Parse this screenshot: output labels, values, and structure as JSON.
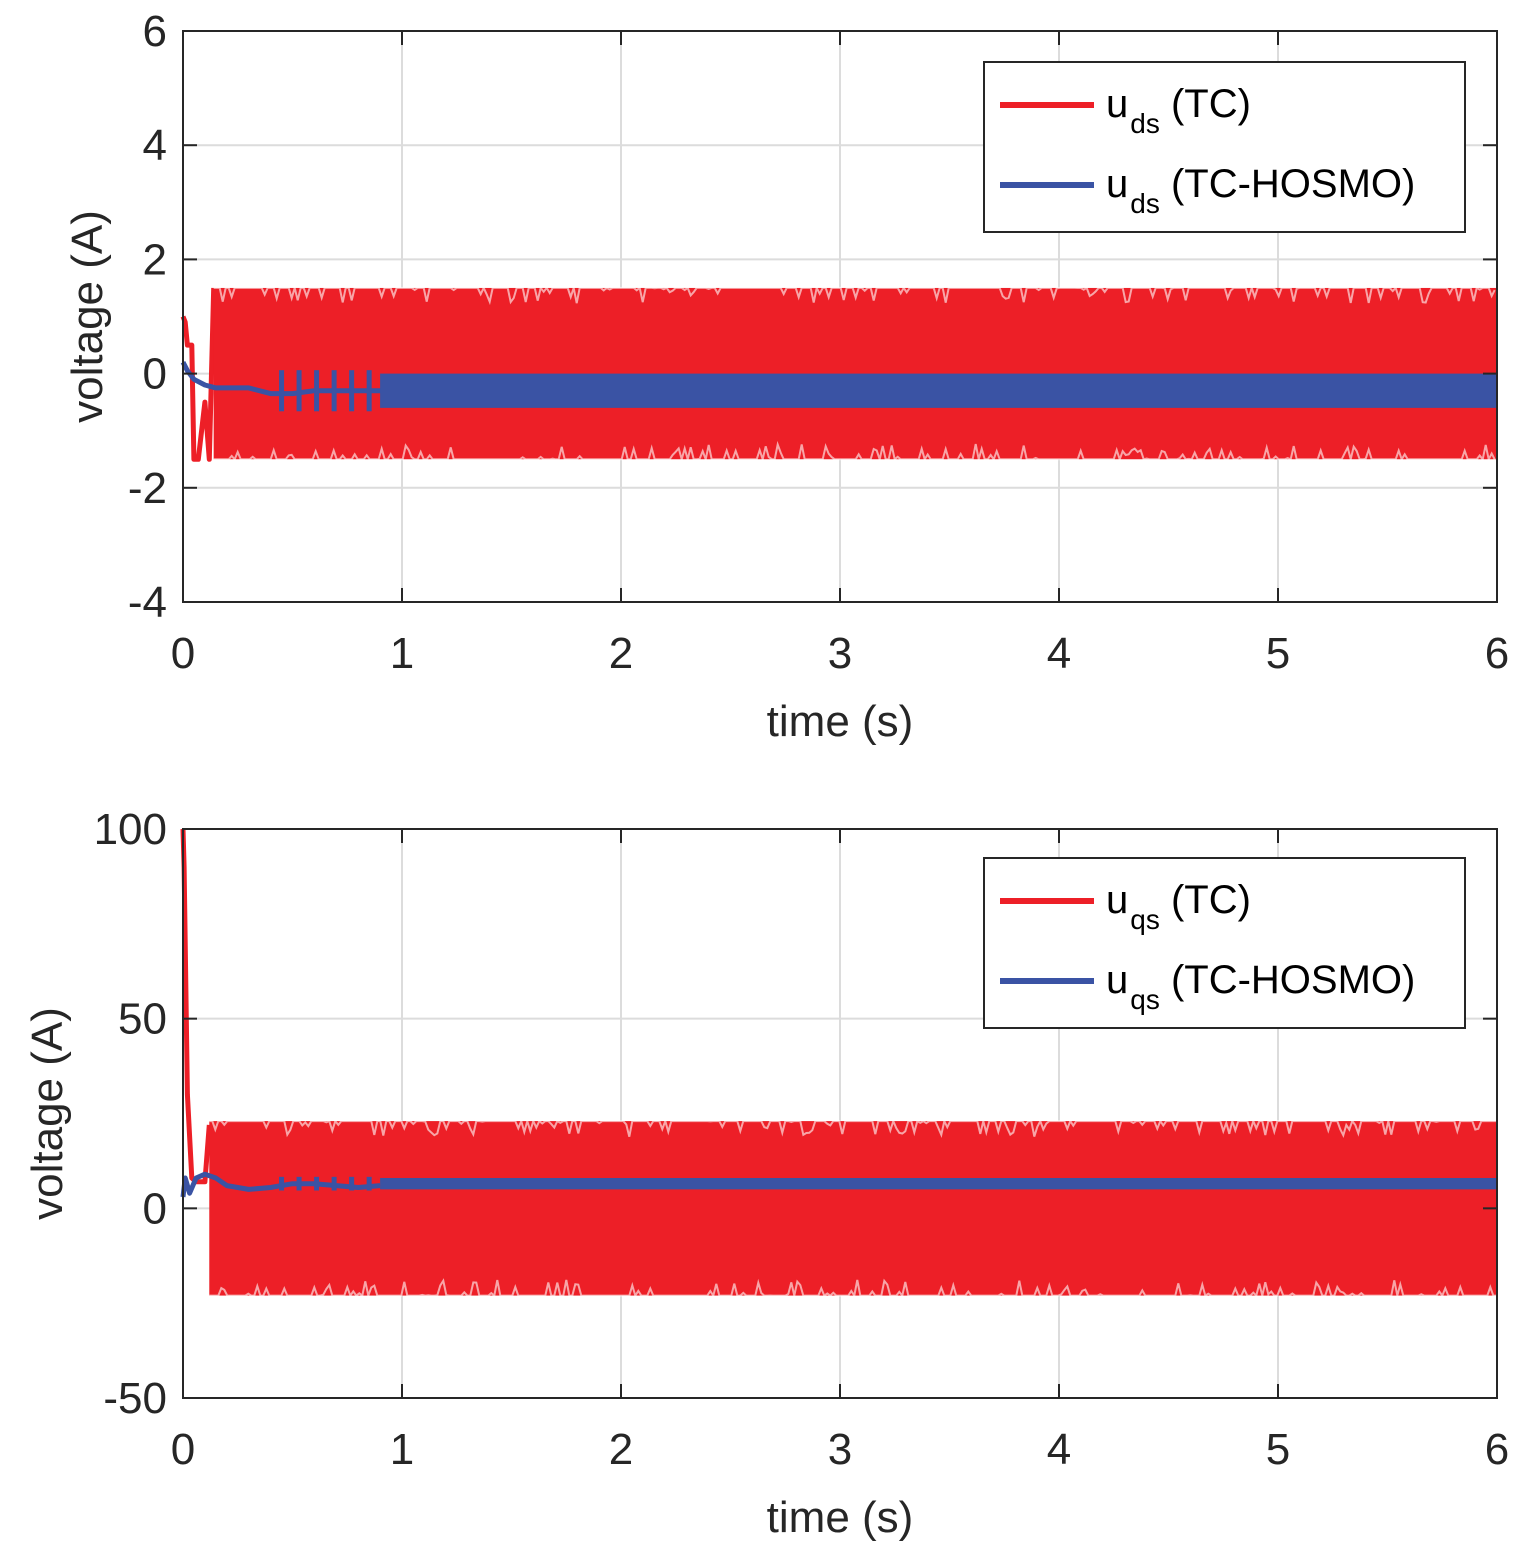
{
  "chart_data": [
    {
      "type": "line",
      "title": "",
      "xlabel": "time (s)",
      "ylabel": "voltage (A)",
      "xlim": [
        0,
        6
      ],
      "ylim": [
        -4,
        6
      ],
      "xticks": [
        "0",
        "1",
        "2",
        "3",
        "4",
        "5",
        "6"
      ],
      "yticks": [
        "6",
        "4",
        "2",
        "0",
        "-2",
        "-4"
      ],
      "grid": true,
      "legend_position": "top-right",
      "series": [
        {
          "name": "u_ds (TC)",
          "legend_main": "u",
          "legend_sub": "ds",
          "legend_suffix": " (TC)",
          "color": "#ed1f27",
          "description": "chattering band between -1.5 and 1.5 after t=0.14 s",
          "initial": {
            "x": [
              0,
              0.01,
              0.02,
              0.04,
              0.05,
              0.07,
              0.1,
              0.12,
              0.14
            ],
            "y": [
              1.0,
              0.9,
              0.5,
              0.5,
              -1.5,
              -1.5,
              -0.5,
              -1.5,
              1.5
            ]
          },
          "band": {
            "x_start": 0.14,
            "x_end": 6,
            "min": -1.5,
            "max": 1.5
          }
        },
        {
          "name": "u_ds (TC-HOSMO)",
          "legend_main": "u",
          "legend_sub": "ds",
          "legend_suffix": " (TC-HOSMO)",
          "color": "#3a53a4",
          "description": "settles near -0.3 with small chattering band",
          "x": [
            0,
            0.02,
            0.05,
            0.1,
            0.15,
            0.2,
            0.3,
            0.4,
            0.5,
            0.6,
            0.7,
            0.8,
            0.9,
            1.0
          ],
          "y": [
            0.2,
            0.05,
            -0.1,
            -0.2,
            -0.25,
            -0.25,
            -0.25,
            -0.35,
            -0.35,
            -0.3,
            -0.3,
            -0.3,
            -0.3,
            -0.3
          ],
          "band": {
            "x_start": 0.9,
            "x_end": 6,
            "min": -0.6,
            "max": 0.0
          }
        }
      ]
    },
    {
      "type": "line",
      "title": "",
      "xlabel": "time (s)",
      "ylabel": "voltage (A)",
      "xlim": [
        0,
        6
      ],
      "ylim": [
        -50,
        100
      ],
      "xticks": [
        "0",
        "1",
        "2",
        "3",
        "4",
        "5",
        "6"
      ],
      "yticks": [
        "100",
        "50",
        "0",
        "-50"
      ],
      "grid": true,
      "legend_position": "top-right",
      "series": [
        {
          "name": "u_qs (TC)",
          "legend_main": "u",
          "legend_sub": "qs",
          "legend_suffix": " (TC)",
          "color": "#ed1f27",
          "description": "starts at 100, drops, then chattering band between -23 and 23 after t=0.12 s",
          "initial": {
            "x": [
              0,
              0.005,
              0.02,
              0.04,
              0.06,
              0.08,
              0.1,
              0.12
            ],
            "y": [
              100,
              90,
              30,
              8,
              7,
              7,
              7,
              22
            ]
          },
          "band": {
            "x_start": 0.12,
            "x_end": 6,
            "min": -23,
            "max": 23
          }
        },
        {
          "name": "u_qs (TC-HOSMO)",
          "legend_main": "u",
          "legend_sub": "qs",
          "legend_suffix": " (TC-HOSMO)",
          "color": "#3a53a4",
          "description": "settles near 6 with small chattering band",
          "x": [
            0,
            0.01,
            0.03,
            0.06,
            0.1,
            0.15,
            0.2,
            0.3,
            0.4,
            0.5,
            0.6,
            0.7,
            0.8,
            0.9
          ],
          "y": [
            3,
            8,
            4,
            8,
            9,
            8,
            6,
            5,
            5.5,
            6.5,
            6.5,
            6,
            5.5,
            6
          ],
          "band": {
            "x_start": 0.9,
            "x_end": 6,
            "min": 5,
            "max": 8
          }
        }
      ]
    }
  ]
}
